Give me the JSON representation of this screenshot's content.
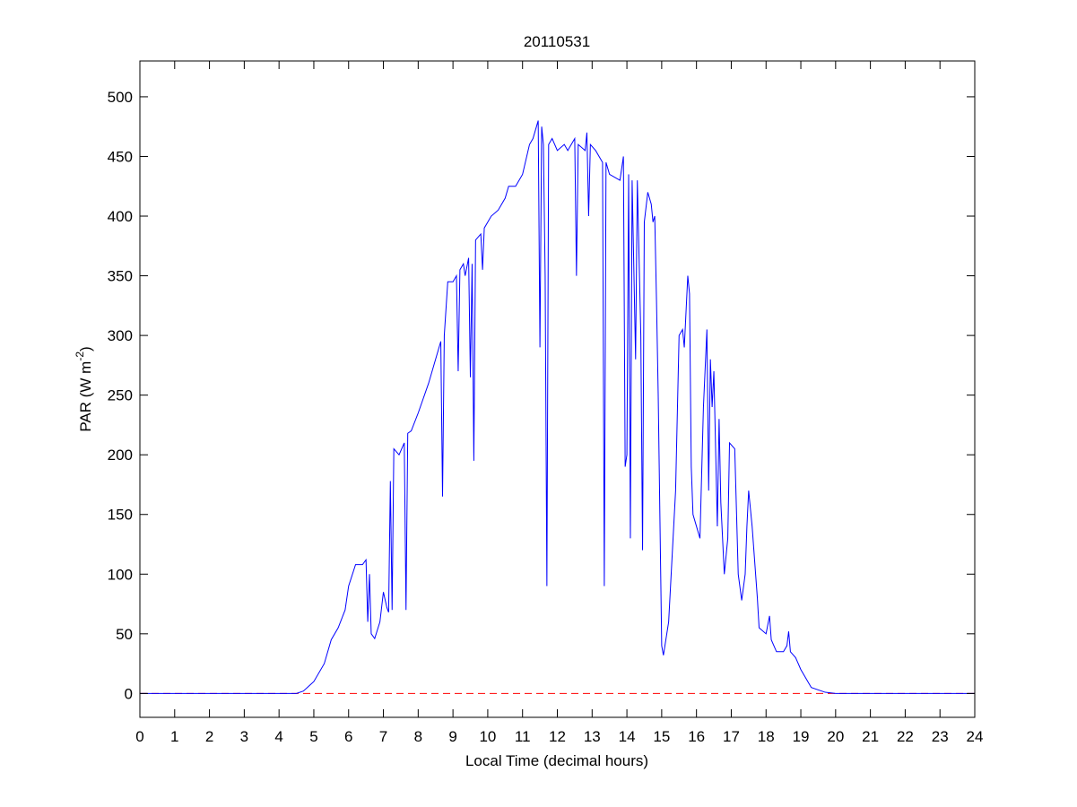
{
  "chart_data": {
    "type": "line",
    "title": "20110531",
    "x_label": "Local Time (decimal hours)",
    "y_label_parts": [
      "PAR (W m",
      "-2",
      ")"
    ],
    "xlim": [
      0,
      24
    ],
    "xticks": [
      0,
      1,
      2,
      3,
      4,
      5,
      6,
      7,
      8,
      9,
      10,
      11,
      12,
      13,
      14,
      15,
      16,
      17,
      18,
      19,
      20,
      21,
      22,
      23,
      24
    ],
    "ylim": [
      -20,
      530
    ],
    "yticks": [
      0,
      50,
      100,
      150,
      200,
      250,
      300,
      350,
      400,
      450,
      500
    ],
    "hline": {
      "value": 0,
      "color": "#ff0000",
      "style": "dashed"
    },
    "x": [
      0,
      4.5,
      4.7,
      5.0,
      5.3,
      5.5,
      5.7,
      5.9,
      6.0,
      6.2,
      6.4,
      6.5,
      6.55,
      6.6,
      6.65,
      6.75,
      6.9,
      7.0,
      7.1,
      7.15,
      7.2,
      7.25,
      7.3,
      7.45,
      7.6,
      7.65,
      7.7,
      7.8,
      8.0,
      8.3,
      8.6,
      8.65,
      8.7,
      8.75,
      8.85,
      9.0,
      9.1,
      9.15,
      9.2,
      9.3,
      9.35,
      9.45,
      9.5,
      9.55,
      9.6,
      9.65,
      9.8,
      9.85,
      9.9,
      10.1,
      10.3,
      10.5,
      10.6,
      10.8,
      11.0,
      11.2,
      11.3,
      11.4,
      11.45,
      11.5,
      11.55,
      11.6,
      11.65,
      11.7,
      11.75,
      11.85,
      12.0,
      12.2,
      12.3,
      12.5,
      12.55,
      12.6,
      12.8,
      12.85,
      12.9,
      12.95,
      13.1,
      13.3,
      13.35,
      13.4,
      13.5,
      13.8,
      13.9,
      13.95,
      14.0,
      14.05,
      14.1,
      14.15,
      14.25,
      14.3,
      14.4,
      14.45,
      14.5,
      14.6,
      14.7,
      14.75,
      14.8,
      14.85,
      14.9,
      15.0,
      15.05,
      15.2,
      15.4,
      15.5,
      15.6,
      15.65,
      15.75,
      15.8,
      15.85,
      15.9,
      16.0,
      16.1,
      16.2,
      16.3,
      16.35,
      16.4,
      16.45,
      16.5,
      16.6,
      16.65,
      16.7,
      16.8,
      16.9,
      16.95,
      17.1,
      17.2,
      17.3,
      17.4,
      17.45,
      17.5,
      17.6,
      17.7,
      17.75,
      17.8,
      18.0,
      18.1,
      18.15,
      18.3,
      18.5,
      18.6,
      18.65,
      18.7,
      18.85,
      19.0,
      19.3,
      19.7,
      20,
      24
    ],
    "series": [
      {
        "color": "#0000ff",
        "values": [
          0,
          0,
          2,
          10,
          25,
          45,
          55,
          70,
          90,
          108,
          108,
          112,
          60,
          100,
          50,
          46,
          60,
          85,
          72,
          68,
          178,
          70,
          205,
          200,
          210,
          70,
          218,
          220,
          235,
          260,
          290,
          295,
          165,
          300,
          345,
          345,
          350,
          270,
          355,
          360,
          350,
          365,
          265,
          360,
          195,
          380,
          385,
          355,
          390,
          400,
          405,
          415,
          425,
          425,
          435,
          460,
          465,
          475,
          480,
          290,
          475,
          460,
          350,
          90,
          460,
          465,
          455,
          460,
          455,
          465,
          350,
          460,
          455,
          470,
          400,
          460,
          455,
          445,
          90,
          445,
          435,
          430,
          450,
          190,
          200,
          435,
          130,
          430,
          280,
          430,
          300,
          120,
          395,
          420,
          410,
          395,
          400,
          330,
          250,
          40,
          32,
          60,
          170,
          300,
          305,
          290,
          350,
          335,
          190,
          150,
          140,
          130,
          240,
          305,
          170,
          280,
          240,
          270,
          140,
          230,
          160,
          100,
          130,
          210,
          205,
          100,
          78,
          100,
          140,
          170,
          140,
          100,
          80,
          55,
          50,
          65,
          45,
          35,
          35,
          40,
          52,
          35,
          30,
          20,
          5,
          1,
          0,
          0
        ]
      }
    ]
  }
}
